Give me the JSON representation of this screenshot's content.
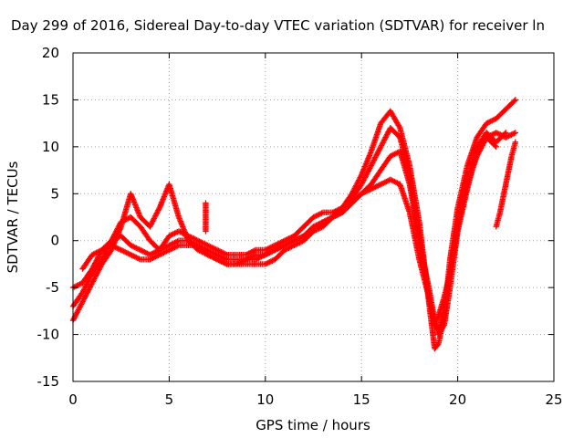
{
  "chart_data": {
    "type": "scatter",
    "title": "Day 299 of 2016, Sidereal Day-to-day VTEC variation (SDTVAR) for receiver ln",
    "xlabel": "GPS time / hours",
    "ylabel": "SDTVAR / TECUs",
    "xlim": [
      0,
      25
    ],
    "ylim": [
      -15,
      20
    ],
    "xticks": [
      "0",
      "5",
      "10",
      "15",
      "20",
      "25"
    ],
    "yticks": [
      "-15",
      "-10",
      "-5",
      "0",
      "5",
      "10",
      "15",
      "20"
    ],
    "grid": true,
    "legend": "none",
    "marker": "+",
    "series_color": "#ff0000",
    "series": [
      {
        "name": "track-1",
        "x": [
          0.0,
          0.5,
          1.0,
          1.5,
          2.0,
          2.5,
          3.0,
          3.5,
          4.0,
          4.5,
          5.0,
          5.5,
          6.0,
          6.5,
          7.0,
          7.5,
          8.0,
          8.5,
          9.0,
          9.5,
          10.0,
          10.5,
          11.0,
          11.5,
          12.0,
          12.5,
          13.0,
          13.5,
          14.0,
          14.5,
          15.0,
          15.5,
          16.0,
          16.5,
          17.0,
          17.5,
          18.0,
          18.5,
          18.8,
          19.0,
          19.3,
          19.6,
          20.0,
          20.5,
          21.0,
          21.5,
          22.0,
          22.5,
          23.0
        ],
        "y": [
          -8.5,
          -6.5,
          -4.5,
          -2.5,
          -1.0,
          1.5,
          5.0,
          2.5,
          1.5,
          3.5,
          6.0,
          2.5,
          0.0,
          -1.0,
          -1.5,
          -2.0,
          -2.5,
          -2.5,
          -2.0,
          -2.0,
          -1.5,
          -1.0,
          -0.5,
          0.0,
          0.5,
          1.5,
          2.0,
          2.5,
          3.5,
          5.0,
          7.0,
          9.5,
          12.5,
          13.8,
          12.0,
          8.0,
          2.0,
          -6.5,
          -11.5,
          -11.0,
          -8.0,
          -2.0,
          3.5,
          8.0,
          11.0,
          12.5,
          13.0,
          14.0,
          15.0
        ]
      },
      {
        "name": "track-2",
        "x": [
          0.0,
          0.5,
          1.0,
          1.5,
          2.0,
          2.5,
          3.0,
          3.5,
          4.0,
          4.5,
          5.0,
          5.5,
          6.0,
          6.5,
          7.0,
          7.5,
          8.0,
          8.5,
          9.0,
          9.5,
          10.0,
          10.5,
          11.0,
          11.5,
          12.0,
          12.5,
          13.0,
          13.5,
          14.0,
          14.5,
          15.0,
          15.5,
          16.0,
          16.5,
          17.0,
          17.5,
          18.0,
          18.5,
          18.8,
          19.0,
          19.3,
          19.6,
          20.0,
          20.5,
          21.0,
          21.5,
          22.0,
          22.5
        ],
        "y": [
          -7.0,
          -5.5,
          -3.5,
          -2.0,
          0.0,
          2.0,
          2.5,
          1.5,
          0.0,
          -1.0,
          0.5,
          1.0,
          0.5,
          0.0,
          -0.5,
          -1.0,
          -1.5,
          -1.5,
          -1.5,
          -1.0,
          -1.0,
          -0.5,
          0.0,
          0.5,
          1.5,
          2.5,
          3.0,
          3.0,
          3.5,
          4.5,
          6.0,
          8.0,
          10.0,
          12.0,
          11.0,
          7.0,
          0.5,
          -6.0,
          -9.0,
          -9.5,
          -7.5,
          -3.5,
          2.0,
          6.5,
          10.0,
          11.5,
          10.5,
          11.5
        ]
      },
      {
        "name": "track-3",
        "x": [
          0.0,
          0.5,
          1.0,
          1.5,
          2.0,
          2.5,
          3.0,
          3.5,
          4.0,
          4.5,
          5.0,
          5.5,
          6.0,
          6.5,
          7.0,
          7.5,
          8.0,
          8.5,
          9.0,
          9.5,
          10.0,
          10.5,
          11.0,
          11.5,
          12.0,
          12.5,
          13.0,
          13.5,
          14.0,
          14.5,
          15.0,
          15.5,
          16.0,
          16.5,
          17.0,
          17.5,
          18.0,
          18.5,
          18.8,
          19.0,
          19.3,
          19.6,
          20.0,
          20.5,
          21.0,
          21.5,
          22.0,
          22.5,
          23.0
        ],
        "y": [
          -5.0,
          -4.5,
          -3.0,
          -1.0,
          0.0,
          0.5,
          -0.5,
          -1.0,
          -1.5,
          -1.0,
          -0.5,
          0.0,
          0.0,
          -0.5,
          -1.5,
          -2.0,
          -2.5,
          -2.5,
          -2.5,
          -2.5,
          -2.5,
          -2.0,
          -1.0,
          -0.5,
          0.0,
          1.0,
          2.0,
          2.5,
          3.0,
          4.0,
          5.0,
          6.0,
          7.5,
          9.0,
          9.5,
          6.0,
          0.0,
          -5.0,
          -8.5,
          -10.0,
          -9.0,
          -5.0,
          1.0,
          5.5,
          9.5,
          11.0,
          11.5,
          11.0,
          11.5
        ]
      },
      {
        "name": "track-4",
        "x": [
          0.5,
          1.0,
          1.5,
          2.0,
          2.5,
          3.0,
          3.5,
          4.0,
          4.5,
          5.0,
          5.5,
          6.0,
          6.5,
          7.0,
          7.5,
          8.0,
          8.5,
          9.0,
          9.5,
          10.0,
          10.5,
          11.0,
          11.5,
          12.0,
          12.5,
          13.0,
          13.5,
          14.0,
          14.5,
          15.0,
          15.5,
          16.0,
          16.5,
          17.0,
          17.5,
          18.0,
          18.5,
          18.8,
          19.0,
          19.3,
          19.6,
          20.0,
          20.5,
          21.0,
          21.5,
          22.0
        ],
        "y": [
          -3.0,
          -1.5,
          -1.0,
          -0.5,
          -1.0,
          -1.5,
          -2.0,
          -2.0,
          -1.5,
          -1.0,
          -0.5,
          -0.5,
          -0.5,
          -1.0,
          -1.5,
          -2.0,
          -2.0,
          -2.0,
          -1.5,
          -1.5,
          -1.0,
          -0.5,
          0.0,
          0.5,
          1.0,
          1.5,
          2.5,
          3.0,
          4.0,
          5.0,
          5.5,
          6.0,
          6.5,
          6.0,
          3.0,
          -2.0,
          -6.0,
          -9.0,
          -8.0,
          -6.0,
          -3.5,
          1.5,
          6.0,
          9.0,
          11.0,
          10.0
        ]
      }
    ],
    "tail_series": {
      "name": "track-5",
      "x": [
        22.0,
        22.2,
        22.4,
        22.6,
        22.8,
        23.0
      ],
      "y": [
        1.5,
        3.0,
        5.0,
        7.0,
        9.0,
        10.5
      ]
    },
    "spikes": [
      {
        "x": 6.9,
        "y0": 1.0,
        "y1": 4.0
      }
    ]
  }
}
